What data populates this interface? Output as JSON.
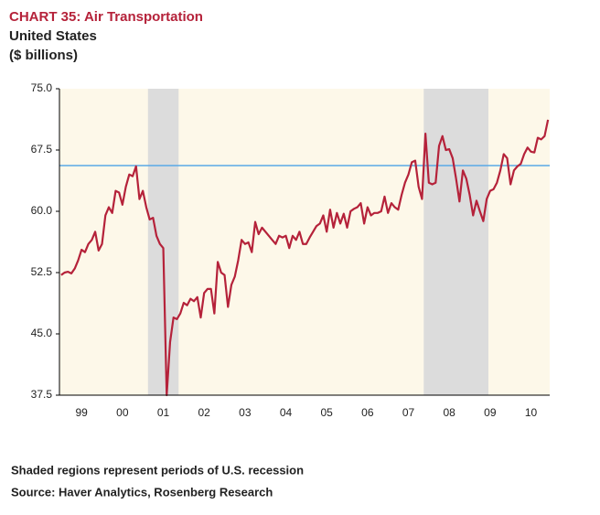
{
  "chart_data": {
    "type": "line",
    "title": "CHART 35: Air Transportation",
    "subtitle": "United States",
    "unit_label": "($ billions)",
    "notes": [
      "Shaded regions represent periods of U.S. recession",
      "Source: Haver Analytics, Rosenberg Research"
    ],
    "categories": [
      null,
      null,
      null,
      null,
      null,
      null,
      "99",
      null,
      null,
      null,
      null,
      null,
      null,
      null,
      null,
      null,
      null,
      null,
      "00",
      null,
      null,
      null,
      null,
      null,
      null,
      null,
      null,
      null,
      null,
      null,
      "01",
      null,
      null,
      null,
      null,
      null,
      null,
      null,
      null,
      null,
      null,
      null,
      "02",
      null,
      null,
      null,
      null,
      null,
      null,
      null,
      null,
      null,
      null,
      null,
      "03",
      null,
      null,
      null,
      null,
      null,
      null,
      null,
      null,
      null,
      null,
      null,
      "04",
      null,
      null,
      null,
      null,
      null,
      null,
      null,
      null,
      null,
      null,
      null,
      "05",
      null,
      null,
      null,
      null,
      null,
      null,
      null,
      null,
      null,
      null,
      null,
      "06",
      null,
      null,
      null,
      null,
      null,
      null,
      null,
      null,
      null,
      null,
      null,
      "07",
      null,
      null,
      null,
      null,
      null,
      null,
      null,
      null,
      null,
      null,
      null,
      "08",
      null,
      null,
      null,
      null,
      null,
      null,
      null,
      null,
      null,
      null,
      null,
      "09",
      null,
      null,
      null,
      null,
      null,
      null,
      null,
      null,
      null,
      null,
      null,
      "10",
      null,
      null,
      null,
      null,
      null
    ],
    "series": [
      {
        "color": "#b5223a",
        "values": [
          52.2,
          52.5,
          52.6,
          52.4,
          53.0,
          54.0,
          55.3,
          55.0,
          56.0,
          56.5,
          57.5,
          55.2,
          56.0,
          59.5,
          60.5,
          59.8,
          62.5,
          62.3,
          60.8,
          63.0,
          64.5,
          64.3,
          65.5,
          61.5,
          62.5,
          60.5,
          59.0,
          59.2,
          57.0,
          56.0,
          55.5,
          37.5,
          44.0,
          47.0,
          46.8,
          47.5,
          48.8,
          48.5,
          49.3,
          49.0,
          49.5,
          47.0,
          50.0,
          50.5,
          50.5,
          47.5,
          53.8,
          52.5,
          52.2,
          48.3,
          51.0,
          52.0,
          54.0,
          56.5,
          56.0,
          56.2,
          55.0,
          58.7,
          57.2,
          58.0,
          57.5,
          57.0,
          56.5,
          56.0,
          57.0,
          56.8,
          57.0,
          55.5,
          57.0,
          56.5,
          57.5,
          56.0,
          56.0,
          56.8,
          57.5,
          58.2,
          58.5,
          59.5,
          57.5,
          60.2,
          58.0,
          59.8,
          58.5,
          59.7,
          58.0,
          60.0,
          60.3,
          60.5,
          61.0,
          58.5,
          60.5,
          59.5,
          59.8,
          59.8,
          60.0,
          61.8,
          59.8,
          61.0,
          60.5,
          60.2,
          62.0,
          63.5,
          64.5,
          66.0,
          66.2,
          63.0,
          61.5,
          69.5,
          63.5,
          63.3,
          63.5,
          68.0,
          69.2,
          67.5,
          67.6,
          66.5,
          64.0,
          61.2,
          65.0,
          64.0,
          62.0,
          59.5,
          61.3,
          60.0,
          58.8,
          61.5,
          62.5,
          62.7,
          63.5,
          65.0,
          67.0,
          66.5,
          63.3,
          65.0,
          65.5,
          65.8,
          67.0,
          67.8,
          67.3,
          67.2,
          69.0,
          68.8,
          69.2,
          71.2
        ]
      }
    ],
    "shaded_regions": [
      [
        26,
        34
      ],
      [
        107,
        125
      ]
    ],
    "shade_color": "#dcdcdc",
    "reference_line": {
      "value": 65.6,
      "color": "#5aa9e6"
    },
    "background": "#fdf8e9",
    "ylim": [
      37.5,
      75
    ],
    "yticks": [
      37.5,
      {
        "value": 45,
        "label": "45.0"
      },
      52.5,
      {
        "value": 60,
        "label": "60.0"
      },
      67.5,
      {
        "value": 75,
        "label": "75.0"
      }
    ]
  }
}
